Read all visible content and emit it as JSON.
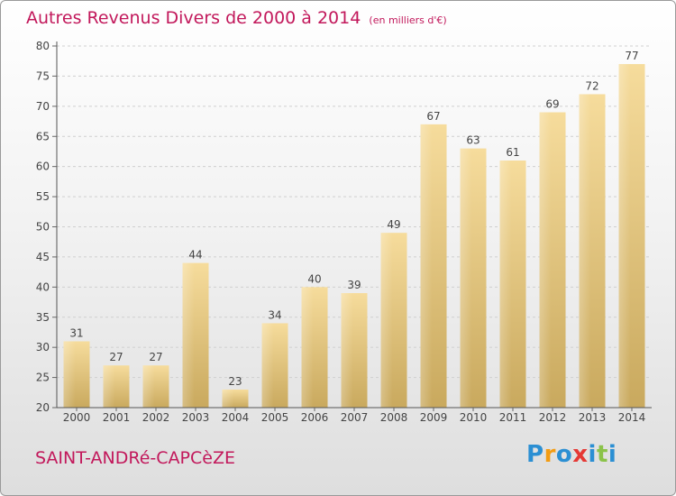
{
  "title": "Autres Revenus Divers de 2000 à 2014",
  "unit": "(en milliers d'€)",
  "place": "SAINT-ANDRé-CAPCèZE",
  "logo": {
    "letters": [
      "P",
      "r",
      "o",
      "x",
      "i",
      "t",
      "i"
    ],
    "colors": [
      "#2b8fd3",
      "#f39c12",
      "#2b8fd3",
      "#e53935",
      "#2b8fd3",
      "#8bc34a",
      "#2b8fd3"
    ]
  },
  "chart_data": {
    "type": "bar",
    "title": "Autres Revenus Divers de 2000 à 2014",
    "categories": [
      "2000",
      "2001",
      "2002",
      "2003",
      "2004",
      "2005",
      "2006",
      "2007",
      "2008",
      "2009",
      "2010",
      "2011",
      "2012",
      "2013",
      "2014"
    ],
    "values": [
      31,
      27,
      27,
      44,
      23,
      34,
      40,
      39,
      49,
      67,
      63,
      61,
      69,
      72,
      77
    ],
    "ylim": [
      20,
      80
    ],
    "yticks": [
      20,
      25,
      30,
      35,
      40,
      45,
      50,
      55,
      60,
      65,
      70,
      75,
      80
    ],
    "grid": true,
    "bar_color": "#f0d18a"
  }
}
